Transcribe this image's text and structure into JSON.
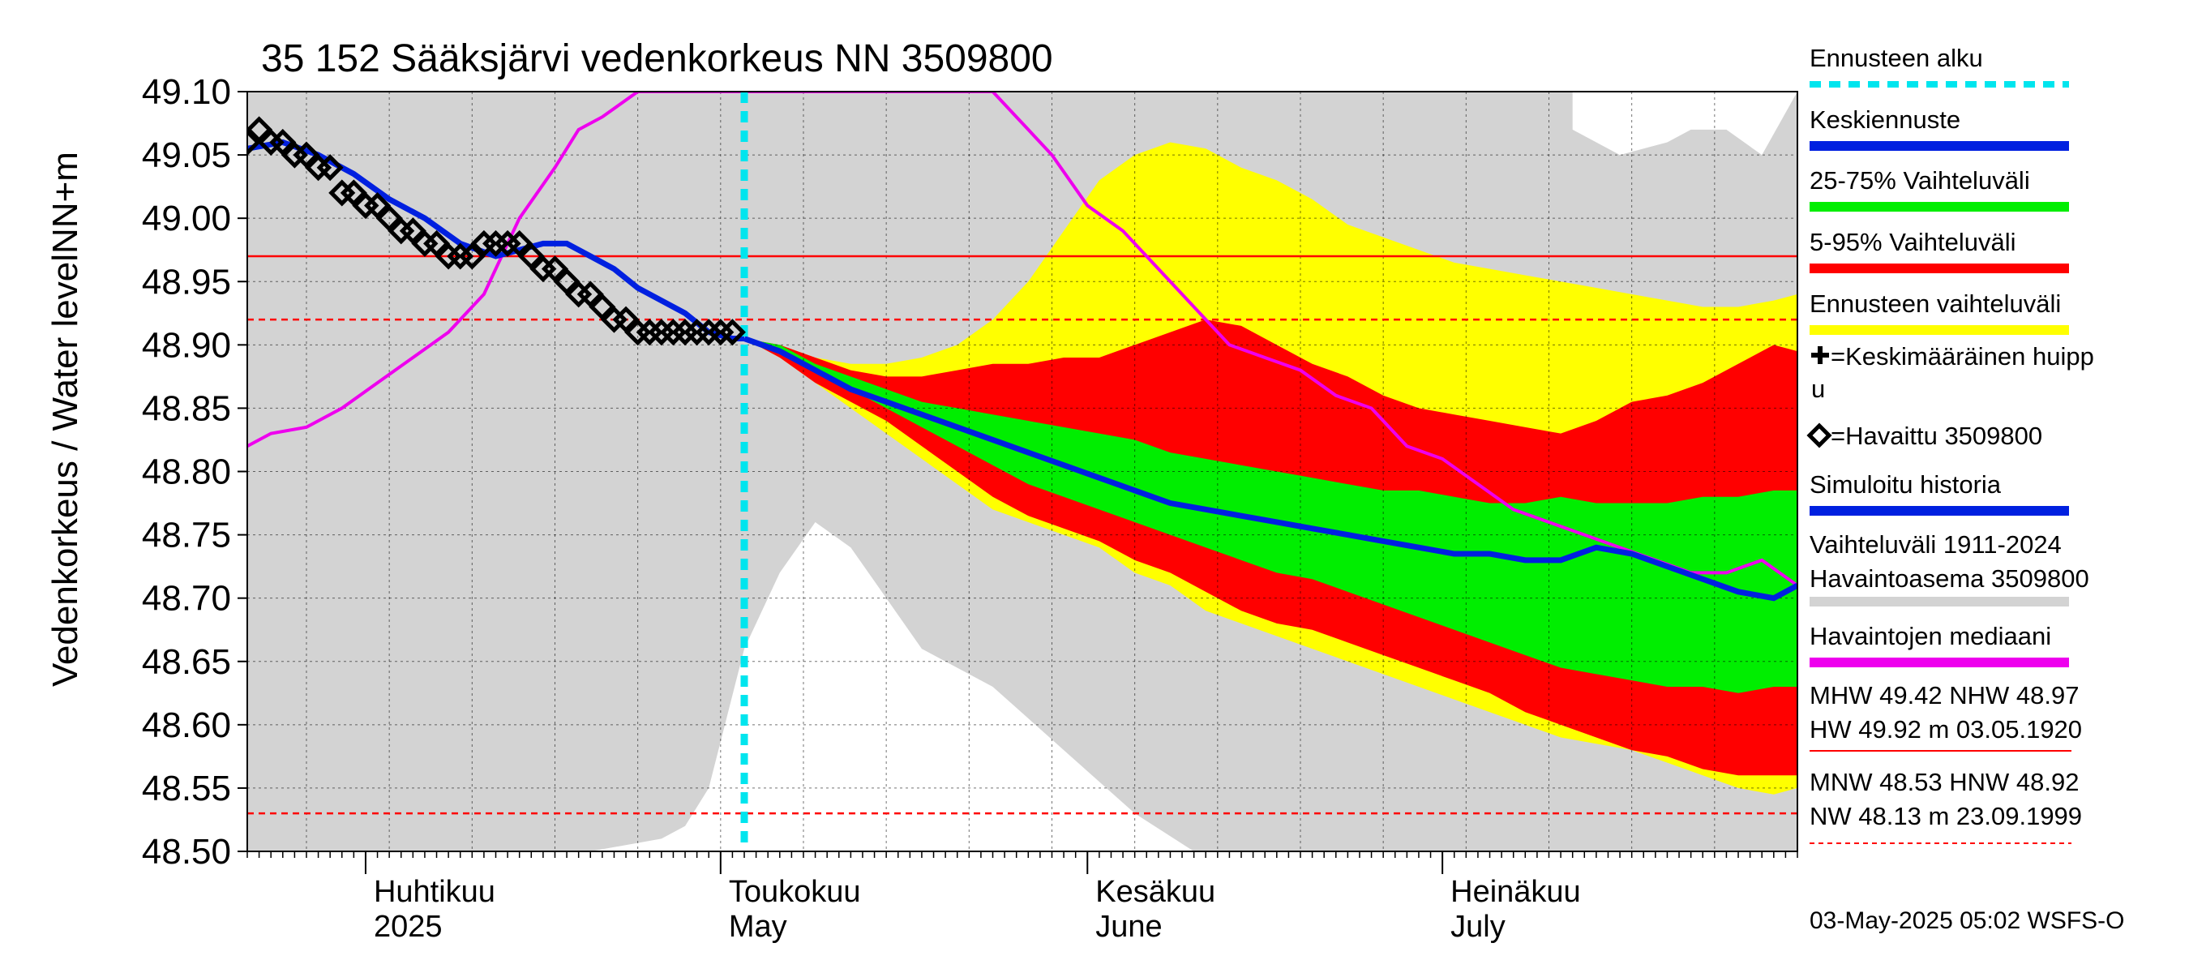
{
  "chart_data": {
    "type": "area",
    "title": "35 152 Sääksjärvi vedenkorkeus NN 3509800",
    "ylabel_outer": "Vedenkorkeus / Water level",
    "ylabel_inner": "NN+m",
    "ylim": [
      48.5,
      49.1
    ],
    "y_ticks": [
      "48.50",
      "48.55",
      "48.60",
      "48.65",
      "48.70",
      "48.75",
      "48.80",
      "48.85",
      "48.90",
      "48.95",
      "49.00",
      "49.05",
      "49.10"
    ],
    "x_range": [
      "2025-03-22",
      "2025-07-31"
    ],
    "month_labels": [
      {
        "fi": "Huhtikuu",
        "en": "2025",
        "date": "2025-04-01"
      },
      {
        "fi": "Toukokuu",
        "en": "May",
        "date": "2025-05-01"
      },
      {
        "fi": "Kesäkuu",
        "en": "June",
        "date": "2025-06-01"
      },
      {
        "fi": "Heinäkuu",
        "en": "July",
        "date": "2025-07-01"
      }
    ],
    "forecast_start": "2025-05-03",
    "reference_lines": {
      "mhw": 48.97,
      "mnw_nhw": 48.92,
      "mnw": 48.53
    },
    "hist_range": {
      "name": "Vaihteluväli 1911-2024 Havaintoasema 3509800",
      "dates": [
        "2025-03-22",
        "2025-04-10",
        "2025-04-20",
        "2025-04-26",
        "2025-04-28",
        "2025-04-30",
        "2025-05-03",
        "2025-05-06",
        "2025-05-09",
        "2025-05-12",
        "2025-05-15",
        "2025-05-18",
        "2025-05-24",
        "2025-05-30",
        "2025-06-05",
        "2025-06-10",
        "2025-06-20",
        "2025-07-01",
        "2025-07-05",
        "2025-07-12",
        "2025-07-16",
        "2025-07-20",
        "2025-07-22",
        "2025-07-25",
        "2025-07-28",
        "2025-07-31"
      ],
      "upper": [
        49.1,
        49.1,
        49.1,
        49.1,
        49.1,
        49.1,
        49.1,
        49.1,
        49.1,
        49.1,
        49.1,
        49.1,
        49.1,
        49.1,
        49.1,
        49.1,
        49.1,
        49.1,
        49.1,
        49.1,
        49.1,
        49.1,
        49.1,
        49.1,
        49.1,
        49.1
      ],
      "lower": [
        48.5,
        48.5,
        48.5,
        48.5,
        48.5,
        48.5,
        48.5,
        48.5,
        48.5,
        48.5,
        48.5,
        48.5,
        48.5,
        48.5,
        48.5,
        48.5,
        48.5,
        48.5,
        48.5,
        48.5,
        48.5,
        48.5,
        48.5,
        48.5,
        48.5,
        48.5
      ],
      "white_gap_upper": [
        null,
        null,
        null,
        null,
        null,
        null,
        null,
        null,
        null,
        null,
        null,
        null,
        null,
        null,
        null,
        null,
        null,
        null,
        null,
        49.07,
        49.05,
        49.06,
        49.07,
        49.07,
        49.05,
        49.1
      ],
      "white_gap_lower": [
        null,
        null,
        48.5,
        48.51,
        48.52,
        48.55,
        48.66,
        48.72,
        48.76,
        48.74,
        48.7,
        48.66,
        48.63,
        48.58,
        48.53,
        48.5,
        null,
        null,
        null,
        null,
        null,
        null,
        null,
        null,
        null,
        null
      ]
    },
    "forecast_bands": {
      "dates": [
        "2025-05-03",
        "2025-05-06",
        "2025-05-09",
        "2025-05-12",
        "2025-05-15",
        "2025-05-18",
        "2025-05-21",
        "2025-05-24",
        "2025-05-27",
        "2025-05-30",
        "2025-06-02",
        "2025-06-05",
        "2025-06-08",
        "2025-06-11",
        "2025-06-14",
        "2025-06-17",
        "2025-06-20",
        "2025-06-23",
        "2025-06-26",
        "2025-06-29",
        "2025-07-02",
        "2025-07-05",
        "2025-07-08",
        "2025-07-11",
        "2025-07-14",
        "2025-07-17",
        "2025-07-20",
        "2025-07-23",
        "2025-07-26",
        "2025-07-29",
        "2025-07-31"
      ],
      "p0": [
        48.905,
        48.89,
        48.87,
        48.85,
        48.83,
        48.81,
        48.79,
        48.77,
        48.76,
        48.75,
        48.74,
        48.72,
        48.71,
        48.69,
        48.68,
        48.67,
        48.66,
        48.65,
        48.64,
        48.63,
        48.62,
        48.61,
        48.6,
        48.59,
        48.585,
        48.58,
        48.57,
        48.56,
        48.55,
        48.545,
        48.55
      ],
      "p5": [
        48.905,
        48.89,
        48.87,
        48.855,
        48.84,
        48.82,
        48.8,
        48.78,
        48.765,
        48.755,
        48.745,
        48.73,
        48.72,
        48.705,
        48.69,
        48.68,
        48.675,
        48.665,
        48.655,
        48.645,
        48.635,
        48.625,
        48.61,
        48.6,
        48.59,
        48.58,
        48.575,
        48.565,
        48.56,
        48.56,
        48.56
      ],
      "p25": [
        48.905,
        48.895,
        48.88,
        48.865,
        48.85,
        48.835,
        48.82,
        48.805,
        48.79,
        48.78,
        48.77,
        48.76,
        48.75,
        48.74,
        48.73,
        48.72,
        48.715,
        48.705,
        48.695,
        48.685,
        48.675,
        48.665,
        48.655,
        48.645,
        48.64,
        48.635,
        48.63,
        48.63,
        48.625,
        48.63,
        48.63
      ],
      "p75": [
        48.905,
        48.9,
        48.885,
        48.875,
        48.865,
        48.855,
        48.85,
        48.845,
        48.84,
        48.835,
        48.83,
        48.825,
        48.815,
        48.81,
        48.805,
        48.8,
        48.795,
        48.79,
        48.785,
        48.785,
        48.78,
        48.775,
        48.775,
        48.78,
        48.775,
        48.775,
        48.775,
        48.78,
        48.78,
        48.785,
        48.785
      ],
      "p95": [
        48.905,
        48.9,
        48.89,
        48.88,
        48.875,
        48.875,
        48.88,
        48.885,
        48.885,
        48.89,
        48.89,
        48.9,
        48.91,
        48.92,
        48.915,
        48.9,
        48.885,
        48.875,
        48.86,
        48.85,
        48.845,
        48.84,
        48.835,
        48.83,
        48.84,
        48.855,
        48.86,
        48.87,
        48.885,
        48.9,
        48.895
      ],
      "p100": [
        48.905,
        48.9,
        48.89,
        48.885,
        48.885,
        48.89,
        48.9,
        48.92,
        48.95,
        48.99,
        49.03,
        49.05,
        49.06,
        49.055,
        49.04,
        49.03,
        49.015,
        48.995,
        48.985,
        48.975,
        48.965,
        48.96,
        48.955,
        48.95,
        48.945,
        48.94,
        48.935,
        48.93,
        48.93,
        48.935,
        48.94
      ],
      "median": [
        48.905,
        48.895,
        48.88,
        48.865,
        48.855,
        48.845,
        48.835,
        48.825,
        48.815,
        48.805,
        48.795,
        48.785,
        48.775,
        48.77,
        48.765,
        48.76,
        48.755,
        48.75,
        48.745,
        48.74,
        48.735,
        48.735,
        48.73,
        48.73,
        48.74,
        48.735,
        48.725,
        48.715,
        48.705,
        48.7,
        48.71
      ]
    },
    "median_hist_line": {
      "name": "Havaintojen mediaani",
      "dates": [
        "2025-03-22",
        "2025-03-24",
        "2025-03-27",
        "2025-03-30",
        "2025-04-02",
        "2025-04-05",
        "2025-04-08",
        "2025-04-11",
        "2025-04-14",
        "2025-04-17",
        "2025-04-19",
        "2025-04-21",
        "2025-04-24",
        "2025-05-24",
        "2025-05-26",
        "2025-05-29",
        "2025-06-01",
        "2025-06-04",
        "2025-06-07",
        "2025-06-10",
        "2025-06-13",
        "2025-06-16",
        "2025-06-19",
        "2025-06-22",
        "2025-06-25",
        "2025-06-28",
        "2025-07-01",
        "2025-07-04",
        "2025-07-07",
        "2025-07-10",
        "2025-07-13",
        "2025-07-16",
        "2025-07-19",
        "2025-07-22",
        "2025-07-25",
        "2025-07-28",
        "2025-07-31"
      ],
      "values": [
        48.82,
        48.83,
        48.835,
        48.85,
        48.87,
        48.89,
        48.91,
        48.94,
        49.0,
        49.04,
        49.07,
        49.08,
        49.1,
        49.1,
        49.08,
        49.05,
        49.01,
        48.99,
        48.96,
        48.93,
        48.9,
        48.89,
        48.88,
        48.86,
        48.85,
        48.82,
        48.81,
        48.79,
        48.77,
        48.76,
        48.75,
        48.74,
        48.73,
        48.72,
        48.72,
        48.73,
        48.71
      ]
    },
    "simulated_history": {
      "name": "Simuloitu historia",
      "dates": [
        "2025-03-22",
        "2025-03-25",
        "2025-03-28",
        "2025-03-31",
        "2025-04-03",
        "2025-04-06",
        "2025-04-09",
        "2025-04-12",
        "2025-04-14",
        "2025-04-16",
        "2025-04-18",
        "2025-04-20",
        "2025-04-22",
        "2025-04-24",
        "2025-04-26",
        "2025-04-28",
        "2025-04-30",
        "2025-05-02",
        "2025-05-03"
      ],
      "values": [
        49.055,
        49.06,
        49.05,
        49.035,
        49.015,
        49.0,
        48.98,
        48.97,
        48.975,
        48.98,
        48.98,
        48.97,
        48.96,
        48.945,
        48.935,
        48.925,
        48.91,
        48.905,
        48.905
      ]
    },
    "observed": {
      "name": "Havaittu 3509800",
      "dates": [
        "2025-03-22",
        "2025-03-23",
        "2025-03-24",
        "2025-03-25",
        "2025-03-26",
        "2025-03-27",
        "2025-03-28",
        "2025-03-29",
        "2025-03-30",
        "2025-03-31",
        "2025-04-01",
        "2025-04-02",
        "2025-04-03",
        "2025-04-04",
        "2025-04-05",
        "2025-04-06",
        "2025-04-07",
        "2025-04-08",
        "2025-04-09",
        "2025-04-10",
        "2025-04-11",
        "2025-04-12",
        "2025-04-13",
        "2025-04-14",
        "2025-04-15",
        "2025-04-16",
        "2025-04-17",
        "2025-04-18",
        "2025-04-19",
        "2025-04-20",
        "2025-04-21",
        "2025-04-22",
        "2025-04-23",
        "2025-04-24",
        "2025-04-25",
        "2025-04-26",
        "2025-04-27",
        "2025-04-28",
        "2025-04-29",
        "2025-04-30",
        "2025-05-01",
        "2025-05-02"
      ],
      "values": [
        49.06,
        49.07,
        49.06,
        49.06,
        49.05,
        49.05,
        49.04,
        49.04,
        49.02,
        49.02,
        49.01,
        49.01,
        49.0,
        48.99,
        48.99,
        48.98,
        48.98,
        48.97,
        48.97,
        48.97,
        48.98,
        48.98,
        48.98,
        48.98,
        48.97,
        48.96,
        48.96,
        48.95,
        48.94,
        48.94,
        48.93,
        48.92,
        48.92,
        48.91,
        48.91,
        48.91,
        48.91,
        48.91,
        48.91,
        48.91,
        48.91,
        48.91
      ]
    },
    "colors": {
      "hist_range": "#d3d3d3",
      "p_outer": "#ffff00",
      "p5_95": "#ff0000",
      "p25_75": "#00ee00",
      "median": "#0020e0",
      "obs_median": "#ee00ee",
      "forecast_start": "#00e5ee",
      "ref_line": "#ff0000"
    }
  },
  "legend": [
    {
      "label": "Ennusteen alku",
      "type": "dash",
      "color": "#00e5ee"
    },
    {
      "label": "Keskiennuste",
      "type": "bar",
      "color": "#0020e0"
    },
    {
      "label": "25-75% Vaihteluväli",
      "type": "bar",
      "color": "#00ee00"
    },
    {
      "label": "5-95% Vaihteluväli",
      "type": "bar",
      "color": "#ff0000"
    },
    {
      "label": "Ennusteen vaihteluväli",
      "type": "bar",
      "color": "#ffff00"
    },
    {
      "label": "=Keskimääräinen huipp",
      "label2": "u",
      "type": "plus"
    },
    {
      "label": "=Havaittu 3509800",
      "type": "diamond"
    },
    {
      "label": "Simuloitu historia",
      "type": "bar",
      "color": "#0020e0"
    },
    {
      "label": "Vaihteluväli 1911-2024",
      "label2": " Havaintoasema 3509800",
      "type": "bar",
      "color": "#d3d3d3"
    },
    {
      "label": "Havaintojen mediaani",
      "type": "bar",
      "color": "#ee00ee"
    }
  ],
  "stats": {
    "line1": "MHW  49.42 NHW  48.97",
    "line2": "HW  49.92 m 03.05.1920",
    "line3": "MNW  48.53 HNW  48.92",
    "line4": "NW  48.13 m 23.09.1999"
  },
  "footer": "03-May-2025 05:02 WSFS-O"
}
